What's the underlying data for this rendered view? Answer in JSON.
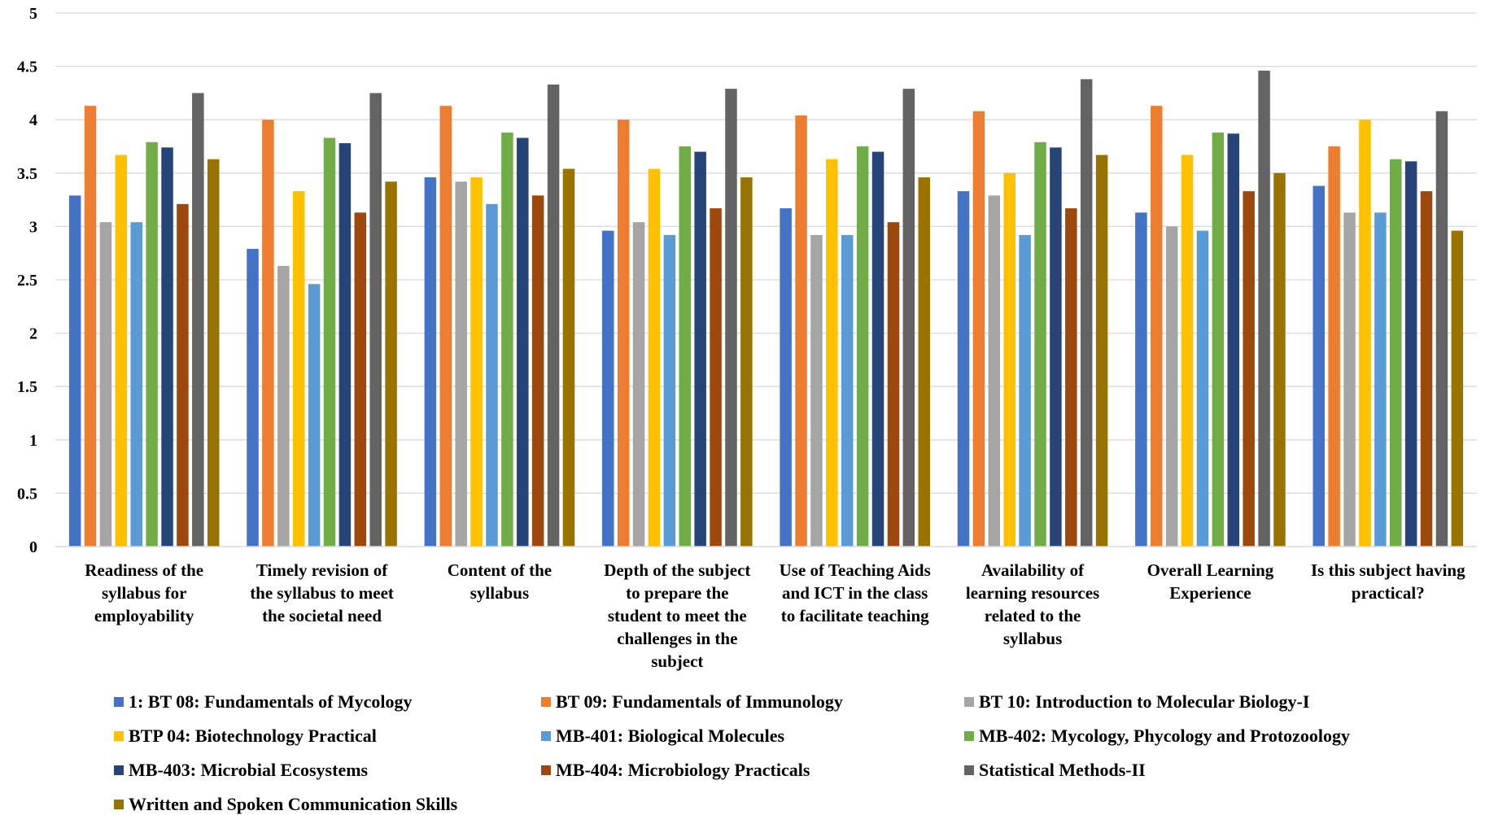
{
  "chart_data": {
    "type": "bar",
    "title": "",
    "xlabel": "",
    "ylabel": "",
    "ylim": [
      0,
      5
    ],
    "yticks": [
      "0",
      "0.5",
      "1",
      "1.5",
      "2",
      "2.5",
      "3",
      "3.5",
      "4",
      "4.5",
      "5"
    ],
    "grid": "horizontal",
    "legend_position": "bottom",
    "categories": [
      "Readiness of the syllabus for employability",
      "Timely revision of the syllabus to meet the societal need",
      "Content of the syllabus",
      "Depth of the subject to prepare the student to meet the challenges in the subject",
      "Use of Teaching Aids and ICT in the class to facilitate teaching",
      "Availability of learning resources related to the syllabus",
      "Overall Learning Experience",
      "Is this subject having practical?"
    ],
    "category_lines": [
      [
        "Readiness of the",
        "syllabus for",
        "employability"
      ],
      [
        "Timely revision of",
        "the syllabus to meet",
        "the societal need"
      ],
      [
        "Content of the",
        "syllabus"
      ],
      [
        "Depth of the subject",
        "to prepare the",
        "student to meet the",
        "challenges in the",
        "subject"
      ],
      [
        "Use of Teaching Aids",
        "and ICT in the class",
        "to facilitate teaching"
      ],
      [
        "Availability of",
        "learning resources",
        "related to the",
        "syllabus"
      ],
      [
        "Overall Learning",
        "Experience"
      ],
      [
        "Is this subject having",
        "practical?"
      ]
    ],
    "series": [
      {
        "name": "1: BT 08: Fundamentals of Mycology",
        "color": "#4472C4",
        "values": [
          3.29,
          2.79,
          3.46,
          2.96,
          3.17,
          3.33,
          3.13,
          3.38
        ]
      },
      {
        "name": "BT 09: Fundamentals of Immunology",
        "color": "#ED7D31",
        "values": [
          4.13,
          4.0,
          4.13,
          4.0,
          4.04,
          4.08,
          4.13,
          3.75
        ]
      },
      {
        "name": "BT 10: Introduction to Molecular Biology-I",
        "color": "#A5A5A5",
        "values": [
          3.04,
          2.63,
          3.42,
          3.04,
          2.92,
          3.29,
          3.0,
          3.13
        ]
      },
      {
        "name": "BTP 04: Biotechnology Practical",
        "color": "#FFC000",
        "values": [
          3.67,
          3.33,
          3.46,
          3.54,
          3.63,
          3.5,
          3.67,
          4.0
        ]
      },
      {
        "name": "MB-401: Biological Molecules",
        "color": "#5B9BD5",
        "values": [
          3.04,
          2.46,
          3.21,
          2.92,
          2.92,
          2.92,
          2.96,
          3.13
        ]
      },
      {
        "name": "MB-402: Mycology, Phycology and Protozoology",
        "color": "#70AD47",
        "values": [
          3.79,
          3.83,
          3.88,
          3.75,
          3.75,
          3.79,
          3.88,
          3.63
        ]
      },
      {
        "name": "MB-403: Microbial Ecosystems",
        "color": "#264478",
        "values": [
          3.74,
          3.78,
          3.83,
          3.7,
          3.7,
          3.74,
          3.87,
          3.61
        ]
      },
      {
        "name": "MB-404: Microbiology Practicals",
        "color": "#9E480E",
        "values": [
          3.21,
          3.13,
          3.29,
          3.17,
          3.04,
          3.17,
          3.33,
          3.33
        ]
      },
      {
        "name": "Statistical Methods-II",
        "color": "#636363",
        "values": [
          4.25,
          4.25,
          4.33,
          4.29,
          4.29,
          4.38,
          4.46,
          4.08
        ]
      },
      {
        "name": "Written and Spoken Communication Skills",
        "color": "#997300",
        "values": [
          3.63,
          3.42,
          3.54,
          3.46,
          3.46,
          3.67,
          3.5,
          2.96
        ]
      }
    ]
  }
}
